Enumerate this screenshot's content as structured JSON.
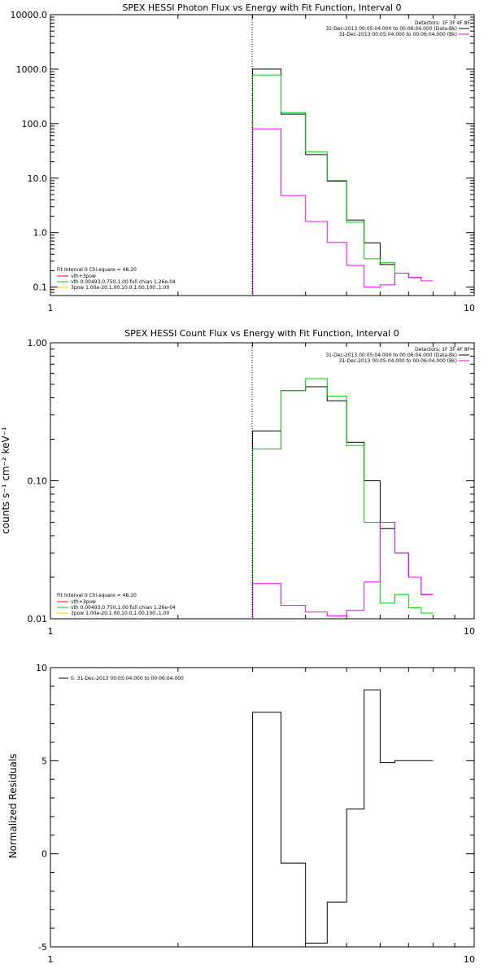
{
  "colors": {
    "data": "#000000",
    "background": "#00cc00",
    "fit": "#ff00ff",
    "total": "#00ee00"
  },
  "chart_data": [
    {
      "type": "line",
      "title": "SPEX HESSI Photon Flux vs Energy with Fit Function, Interval 0",
      "xlabel": "",
      "ylabel": "",
      "xscale": "log",
      "yscale": "log",
      "xlim": [
        1,
        10
      ],
      "ylim": [
        0.07,
        10000
      ],
      "xtick_labels": [
        "1",
        "10"
      ],
      "ytick_labels": [
        "0.1",
        "1.0",
        "10.0",
        "100.0",
        "1000.0",
        "10000.0"
      ],
      "ytick_values": [
        0.1,
        1,
        10,
        100,
        1000,
        10000
      ],
      "vline_x": 3.0,
      "edges": [
        3.0,
        3.5,
        4.0,
        4.5,
        5.0,
        5.5,
        6.0,
        6.5,
        7.0,
        7.5,
        8.0
      ],
      "series": [
        {
          "color": "#000000",
          "values": [
            1000,
            150,
            27,
            8.8,
            1.7,
            0.65,
            0.26,
            0.18,
            0.15,
            0.13
          ]
        },
        {
          "color": "#00cc00",
          "values": [
            780,
            160,
            30,
            9.0,
            1.55,
            0.33,
            0.28,
            0.18,
            0.15,
            0.13
          ]
        },
        {
          "color": "#ff00ff",
          "values": [
            80,
            4.8,
            1.6,
            0.66,
            0.25,
            0.1,
            0.11,
            0.18,
            0.15,
            0.13
          ]
        }
      ],
      "legend_header": [
        "Detectors: 1F 3F 4F 8F",
        "31-Dec-2013 00:05:04.000 to 00:06:04.000 (Data-Bk)",
        "31-Dec-2013 00:05:04.000 to 00:06:04.000 (Bk)"
      ],
      "fit_legend": [
        "Fit Interval 0   Chi-square = 48.20",
        "vth+3pow",
        "vth 0.00493,0.750,1.00  full chian 1.26e-04",
        "3pow 1.00e-20,1.00,10.0,1.00,100.,1.00"
      ]
    },
    {
      "type": "line",
      "title": "SPEX HESSI Count Flux vs Energy with Fit Function, Interval 0",
      "xlabel": "",
      "ylabel": "counts s⁻¹ cm⁻² keV⁻¹",
      "xscale": "log",
      "yscale": "log",
      "xlim": [
        1,
        10
      ],
      "ylim": [
        0.01,
        1.0
      ],
      "xtick_labels": [
        "1",
        "10"
      ],
      "ytick_labels": [
        "0.01",
        "0.10",
        "1.00"
      ],
      "ytick_values": [
        0.01,
        0.1,
        1.0
      ],
      "vline_x": 3.0,
      "edges": [
        3.0,
        3.5,
        4.0,
        4.5,
        5.0,
        5.5,
        6.0,
        6.5,
        7.0,
        7.5,
        8.0
      ],
      "series": [
        {
          "color": "#000000",
          "values": [
            0.23,
            0.45,
            0.48,
            0.38,
            0.19,
            0.1,
            0.045,
            0.03,
            0.02,
            0.015
          ]
        },
        {
          "color": "#00cc00",
          "values": [
            0.17,
            0.45,
            0.55,
            0.41,
            0.18,
            0.05,
            0.013,
            0.015,
            0.012,
            0.011
          ]
        },
        {
          "color": "#ff00ff",
          "values": [
            0.018,
            0.0125,
            0.0112,
            0.0105,
            0.0115,
            0.0185,
            0.05,
            0.03,
            0.02,
            0.015
          ]
        }
      ],
      "legend_header": [
        "Detectors: 1F 3F 4F 8F",
        "31-Dec-2013 00:05:04.000 to 00:06:04.000 (Data-Bk)",
        "31-Dec-2013 00:05:04.000 to 00:06:04.000 (Bk)"
      ],
      "fit_legend": [
        "Fit Interval 0   Chi-square = 48.20",
        "vth+3pow",
        "vth 0.00493,0.750,1.00  full chian 1.26e-04",
        "3pow 1.00e-20,1.00,10.0,1.00,100.,1.00"
      ]
    },
    {
      "type": "line",
      "title": "",
      "xlabel": "",
      "ylabel": "Normalized Residuals",
      "xscale": "log",
      "yscale": "linear",
      "xlim": [
        1,
        10
      ],
      "ylim": [
        -5,
        10
      ],
      "xtick_labels": [
        "1",
        "10"
      ],
      "ytick_labels": [
        "-5",
        "0",
        "5",
        "10"
      ],
      "ytick_values": [
        -5,
        0,
        5,
        10
      ],
      "edges": [
        3.0,
        3.5,
        4.0,
        4.5,
        5.0,
        5.5,
        6.0,
        6.5,
        7.0,
        7.5,
        8.0
      ],
      "series": [
        {
          "color": "#000000",
          "values": [
            7.6,
            -0.5,
            -4.8,
            -2.6,
            2.4,
            8.8,
            4.9,
            5.0,
            5.0,
            5.0
          ]
        }
      ],
      "legend_header": [
        "0. 31-Dec-2013 00:05:04.000 to 00:06:04.000"
      ]
    }
  ]
}
